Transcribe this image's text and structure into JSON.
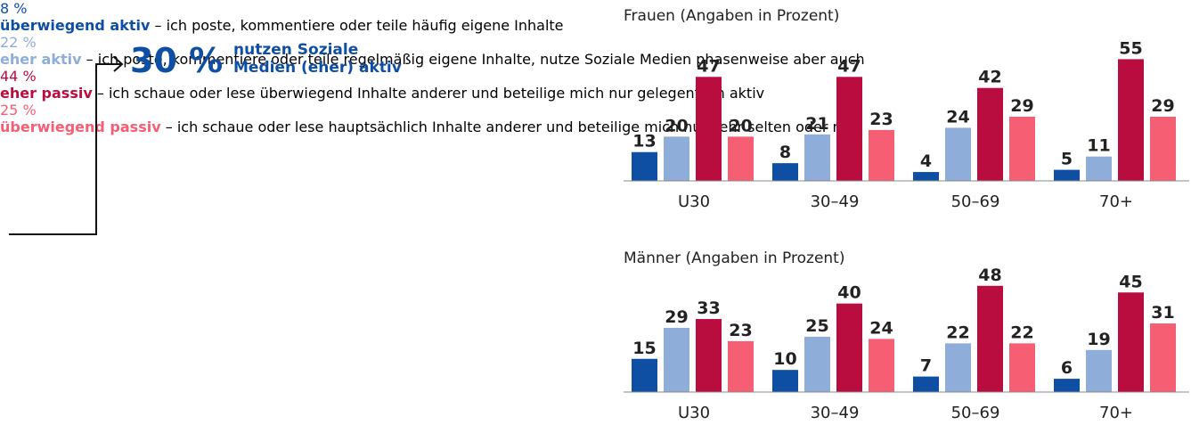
{
  "summary": {
    "total": "30 %",
    "total_text": "nutzen Soziale Medien (eher) aktiv",
    "items": [
      {
        "share": "8 %",
        "description": "– ich poste, kommentiere oder teile häufig eigene Inhalte"
      },
      {
        "share": "22 %",
        "description": "– ich poste, kommentiere oder teile regelmäßig eigene Inhalte, nutze Soziale Medien phasenweise aber auch"
      },
      {
        "share": "44 %",
        "description": "– ich schaue oder lese überwiegend Inhalte anderer und beteilige mich nur gelegentlich aktiv"
      },
      {
        "share": "25 %",
        "description": "– ich schaue oder lese hauptsächlich Inhalte anderer und beteilige mich nur sehr selten oder nie"
      }
    ]
  },
  "chart_data": [
    {
      "type": "bar",
      "title": "Frauen (Angaben in Prozent)",
      "categories": [
        "U30",
        "30–49",
        "50–69",
        "70+"
      ],
      "ylim": [
        0,
        60
      ],
      "series": [
        {
          "name": "überwiegend aktiv",
          "color": "#0f4fa3",
          "values": [
            13,
            8,
            4,
            5
          ]
        },
        {
          "name": "eher aktiv",
          "color": "#8fadd9",
          "values": [
            20,
            21,
            24,
            11
          ]
        },
        {
          "name": "eher passiv",
          "color": "#b90d40",
          "values": [
            47,
            47,
            42,
            55
          ]
        },
        {
          "name": "überwiegend passiv",
          "color": "#f65e74",
          "values": [
            20,
            23,
            29,
            29
          ]
        }
      ]
    },
    {
      "type": "bar",
      "title": "Männer (Angaben in Prozent)",
      "categories": [
        "U30",
        "30–49",
        "50–69",
        "70+"
      ],
      "ylim": [
        0,
        60
      ],
      "series": [
        {
          "color": "#0f4fa3",
          "values": [
            15,
            10,
            7,
            6
          ]
        },
        {
          "color": "#8fadd9",
          "values": [
            29,
            25,
            22,
            19
          ]
        },
        {
          "color": "#b90d40",
          "values": [
            33,
            40,
            48,
            45
          ]
        },
        {
          "color": "#f65e74",
          "values": [
            23,
            24,
            22,
            31
          ]
        }
      ]
    }
  ]
}
